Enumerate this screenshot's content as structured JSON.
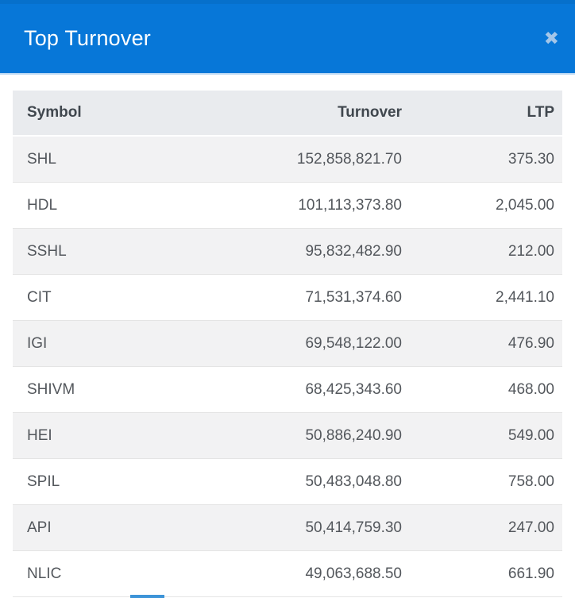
{
  "modal": {
    "title": "Top Turnover",
    "close_icon": "✖"
  },
  "colors": {
    "header_blue": "#0777d8",
    "close_icon_blue": "#a3c6e9",
    "table_header_bg": "#e9ebee",
    "row_stripe_bg": "#f2f2f3",
    "indicator_blue": "#3d94d8"
  },
  "table": {
    "columns": [
      "Symbol",
      "Turnover",
      "LTP"
    ],
    "rows": [
      {
        "symbol": "SHL",
        "turnover": "152,858,821.70",
        "ltp": "375.30"
      },
      {
        "symbol": "HDL",
        "turnover": "101,113,373.80",
        "ltp": "2,045.00"
      },
      {
        "symbol": "SSHL",
        "turnover": "95,832,482.90",
        "ltp": "212.00"
      },
      {
        "symbol": "CIT",
        "turnover": "71,531,374.60",
        "ltp": "2,441.10"
      },
      {
        "symbol": "IGI",
        "turnover": "69,548,122.00",
        "ltp": "476.90"
      },
      {
        "symbol": "SHIVM",
        "turnover": "68,425,343.60",
        "ltp": "468.00"
      },
      {
        "symbol": "HEI",
        "turnover": "50,886,240.90",
        "ltp": "549.00"
      },
      {
        "symbol": "SPIL",
        "turnover": "50,483,048.80",
        "ltp": "758.00"
      },
      {
        "symbol": "API",
        "turnover": "50,414,759.30",
        "ltp": "247.00"
      },
      {
        "symbol": "NLIC",
        "turnover": "49,063,688.50",
        "ltp": "661.90"
      }
    ]
  }
}
